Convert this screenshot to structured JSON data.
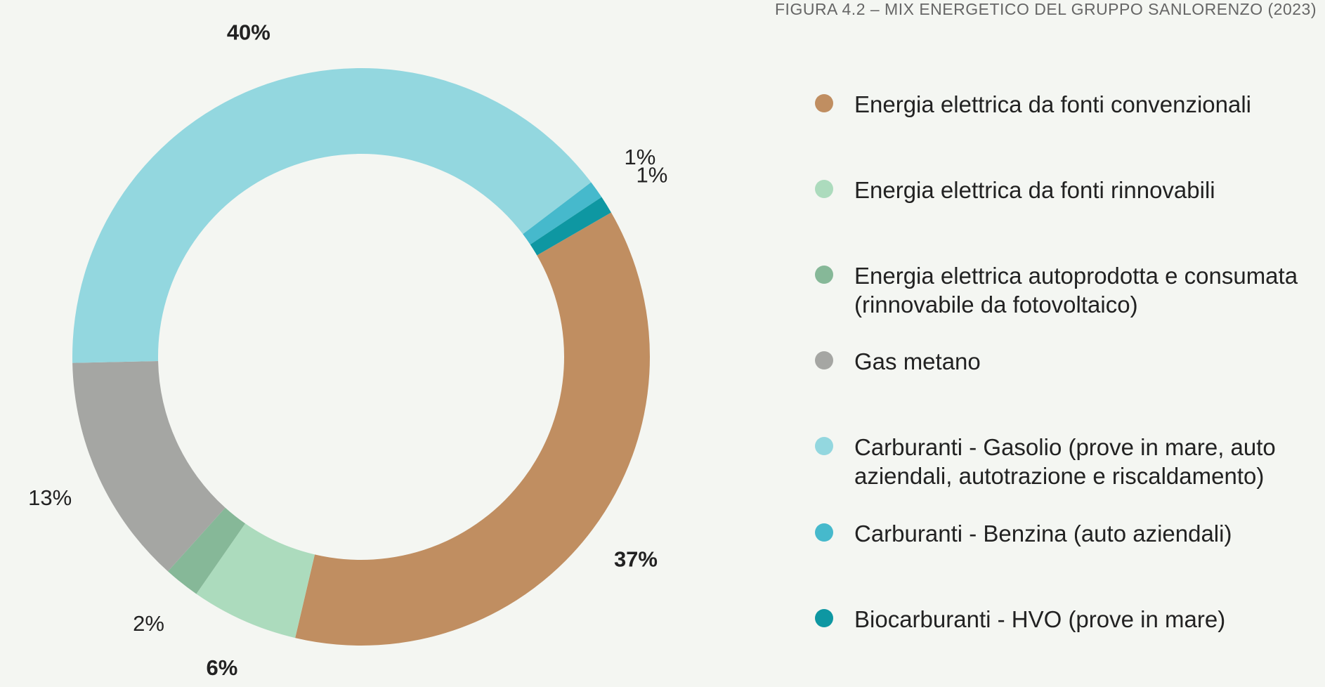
{
  "chart_data": {
    "type": "pie",
    "title": "FIGURA 4.2 – MIX ENERGETICO DEL GRUPPO SANLORENZO (2023)",
    "series": [
      {
        "name": "Energia elettrica da fonti convenzionali",
        "color": "#c08e61",
        "values": [
          37
        ]
      },
      {
        "name": "Energia elettrica da fonti rinnovabili",
        "color": "#acdbbd",
        "values": [
          6
        ]
      },
      {
        "name": "Energia elettrica autoprodotta e consumata (rinnovabile da fotovoltaico)",
        "color": "#86b898",
        "values": [
          2
        ]
      },
      {
        "name": "Gas metano",
        "color": "#a5a6a3",
        "values": [
          13
        ]
      },
      {
        "name": "Carburanti - Gasolio (prove in mare, auto aziendali, autotrazione e riscaldamento)",
        "color": "#93d7df",
        "values": [
          40
        ]
      },
      {
        "name": "Carburanti - Benzina  (auto aziendali)",
        "color": "#46b9cc",
        "values": [
          1
        ]
      },
      {
        "name": "Biocarburanti - HVO (prove in mare)",
        "color": "#0e97a2",
        "values": [
          1
        ]
      }
    ],
    "value_labels": [
      "37%",
      "6%",
      "2%",
      "13%",
      "40%",
      "1%",
      "1%"
    ]
  }
}
